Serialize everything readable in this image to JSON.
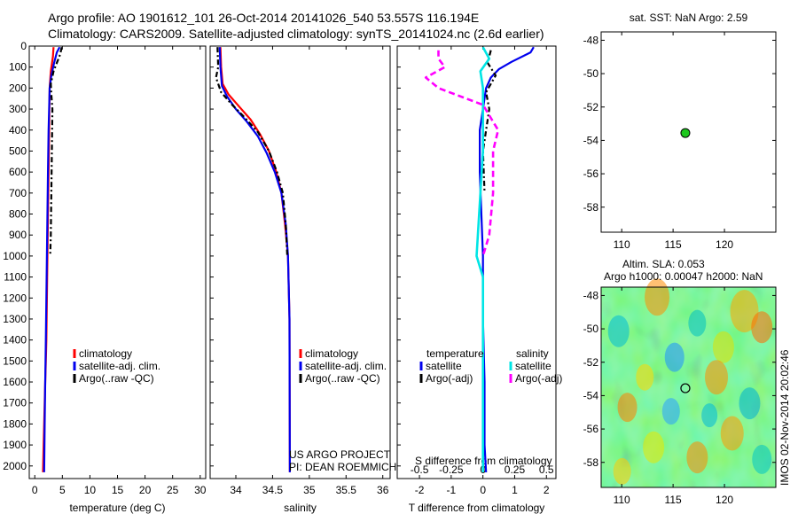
{
  "header": {
    "line1": "Argo profile: AO 1901612_101 26-Oct-2014 20141026_540 53.557S 116.194E",
    "line2": "Climatology: CARS2009. Satellite-adjusted climatology: synTS_20141024.nc (2.6d earlier)"
  },
  "side_stamp": "IMOS 02-Nov-2014 20:02:46",
  "colors": {
    "clim": "#ff0000",
    "sat": "#0000ee",
    "argo": "#000000",
    "sat_s": "#00e5e5",
    "argo_s": "#ff00ff"
  },
  "chart_data": [
    {
      "id": "temperature",
      "type": "line",
      "xlabel": "temperature (deg C)",
      "ylabel": "",
      "xlim": [
        -1,
        31
      ],
      "ylim": [
        2060,
        0
      ],
      "xticks": [
        "0",
        "5",
        "10",
        "15",
        "20",
        "25",
        "30"
      ],
      "xtick_values": [
        0,
        5,
        10,
        15,
        20,
        25,
        30
      ],
      "yticks": [
        "0",
        "100",
        "200",
        "300",
        "400",
        "500",
        "600",
        "700",
        "800",
        "900",
        "1000",
        "1100",
        "1200",
        "1300",
        "1400",
        "1500",
        "1600",
        "1700",
        "1800",
        "1900",
        "2000"
      ],
      "ytick_values": [
        0,
        100,
        200,
        300,
        400,
        500,
        600,
        700,
        800,
        900,
        1000,
        1100,
        1200,
        1300,
        1400,
        1500,
        1600,
        1700,
        1800,
        1900,
        2000
      ],
      "legend": [
        "climatology",
        "satellite-adj. clim.",
        "Argo(..raw -QC)"
      ],
      "series": [
        {
          "name": "climatology",
          "x": [
            3.4,
            3.3,
            2.9,
            2.7,
            2.6,
            2.5,
            2.4,
            2.3,
            2.2,
            2.1,
            2.0,
            1.9,
            1.8,
            1.7,
            1.6,
            1.5
          ],
          "y": [
            5,
            50,
            120,
            200,
            400,
            600,
            800,
            1000,
            1200,
            1400,
            1500,
            1600,
            1700,
            1800,
            1900,
            2030
          ]
        },
        {
          "name": "satellite-adj. clim.",
          "x": [
            4.5,
            4.0,
            3.5,
            3.0,
            2.7,
            2.6,
            2.5,
            2.4,
            2.3,
            2.2,
            2.1,
            2.0,
            1.9,
            1.8,
            1.7
          ],
          "y": [
            5,
            30,
            80,
            140,
            200,
            300,
            400,
            600,
            800,
            1000,
            1200,
            1400,
            1600,
            1800,
            2030
          ]
        },
        {
          "name": "Argo(..raw -QC)",
          "x": [
            4.9,
            4.6,
            3.4,
            2.9,
            3.0,
            3.2,
            3.1,
            3.0,
            2.9,
            2.8
          ],
          "y": [
            5,
            40,
            120,
            180,
            230,
            300,
            500,
            700,
            900,
            1000
          ]
        }
      ]
    },
    {
      "id": "salinity",
      "type": "line",
      "xlabel": "salinity",
      "xlim": [
        33.65,
        36.1
      ],
      "ylim": [
        2060,
        0
      ],
      "xticks": [
        "34",
        "34.5",
        "35",
        "35.5",
        "36"
      ],
      "xtick_values": [
        34,
        34.5,
        35,
        35.5,
        36
      ],
      "legend": [
        "climatology",
        "satellite-adj. clim.",
        "Argo(..raw -QC)"
      ],
      "annotations": [
        "US ARGO PROJECT",
        "PI: DEAN ROEMMICH"
      ],
      "series": [
        {
          "name": "climatology",
          "x": [
            33.79,
            33.8,
            33.82,
            33.9,
            34.05,
            34.2,
            34.33,
            34.45,
            34.55,
            34.62,
            34.67,
            34.71,
            34.73,
            34.735
          ],
          "y": [
            5,
            100,
            180,
            230,
            290,
            350,
            420,
            500,
            600,
            700,
            850,
            1000,
            1300,
            2030
          ]
        },
        {
          "name": "satellite-adj. clim.",
          "x": [
            33.78,
            33.79,
            33.81,
            33.88,
            34.0,
            34.15,
            34.3,
            34.42,
            34.53,
            34.62,
            34.68,
            34.71,
            34.73,
            34.735
          ],
          "y": [
            5,
            100,
            190,
            240,
            300,
            360,
            430,
            510,
            600,
            700,
            850,
            1000,
            1300,
            2030
          ]
        },
        {
          "name": "Argo(..raw -QC)",
          "x": [
            33.75,
            33.76,
            33.73,
            33.8,
            33.95,
            34.12,
            34.3,
            34.45,
            34.56,
            34.64,
            34.68,
            34.7
          ],
          "y": [
            5,
            100,
            150,
            220,
            280,
            340,
            410,
            500,
            600,
            700,
            850,
            1000
          ]
        }
      ]
    },
    {
      "id": "differences",
      "type": "line",
      "xlabel": "T difference from climatology",
      "top_xlabel": "S difference from climatology",
      "xlim": [
        -2.7,
        2.3
      ],
      "ylim": [
        2060,
        0
      ],
      "xticks": [
        "-2",
        "-1",
        "0",
        "1",
        "2"
      ],
      "xtick_values": [
        -2,
        -1,
        0,
        1,
        2
      ],
      "top_xticks": [
        "-0.5",
        "-0.25",
        "0",
        "0.25",
        "0.5"
      ],
      "top_xtick_values": [
        -0.5,
        -0.25,
        0,
        0.25,
        0.5
      ],
      "legend_left_title": "temperature",
      "legend_right_title": "salinity",
      "legend_left": [
        "satellite",
        "Argo(-adj)"
      ],
      "legend_right": [
        "satellite",
        "Argo(-adj)"
      ],
      "series": [
        {
          "name": "temperature satellite",
          "x": [
            1.6,
            1.5,
            0.9,
            0.5,
            0.25,
            0.1,
            0.0,
            -0.1,
            -0.1,
            -0.05,
            0.0,
            0.0,
            0.05,
            0.05,
            0.1
          ],
          "y": [
            5,
            30,
            75,
            110,
            150,
            200,
            300,
            400,
            600,
            800,
            1000,
            1300,
            1600,
            1900,
            2030
          ]
        },
        {
          "name": "temperature Argo(-adj)",
          "x": [
            0.25,
            0.15,
            0.4,
            0.1,
            0.2,
            0.0,
            0.05
          ],
          "y": [
            20,
            80,
            140,
            220,
            300,
            500,
            700
          ]
        },
        {
          "name": "salinity satellite",
          "x": [
            0.0,
            0.05,
            -0.02,
            0.0,
            0.0,
            -0.05,
            0.0,
            0.0,
            0.0
          ],
          "y": [
            5,
            60,
            120,
            200,
            500,
            1000,
            1100,
            1500,
            2030
          ]
        },
        {
          "name": "salinity Argo(-adj)",
          "x": [
            -0.35,
            -0.35,
            -0.3,
            -0.45,
            -0.35,
            0.0,
            0.12,
            0.08,
            0.08,
            0.05,
            0.0
          ],
          "y": [
            20,
            60,
            100,
            150,
            200,
            280,
            400,
            500,
            700,
            900,
            1000
          ]
        }
      ]
    },
    {
      "id": "sst-map",
      "type": "scatter",
      "title": "sat. SST: NaN Argo: 2.59",
      "xlim": [
        108,
        125
      ],
      "ylim": [
        -59.5,
        -47.5
      ],
      "xticks": [
        "110",
        "115",
        "120"
      ],
      "xtick_values": [
        110,
        115,
        120
      ],
      "yticks": [
        "-48",
        "-50",
        "-52",
        "-54",
        "-56",
        "-58"
      ],
      "ytick_values": [
        -48,
        -50,
        -52,
        -54,
        -56,
        -58
      ],
      "points": [
        {
          "x": 116.194,
          "y": -53.557
        }
      ]
    },
    {
      "id": "sla-map",
      "type": "heatmap",
      "title_lines": [
        "Altim. SLA: 0.053",
        "Argo h1000: 0.00047 h2000: NaN"
      ],
      "xlim": [
        108,
        125
      ],
      "ylim": [
        -59.5,
        -47.5
      ],
      "xticks": [
        "110",
        "115",
        "120"
      ],
      "xtick_values": [
        110,
        115,
        120
      ],
      "yticks": [
        "-48",
        "-50",
        "-52",
        "-54",
        "-56",
        "-58"
      ],
      "ytick_values": [
        -48,
        -50,
        -52,
        -54,
        -56,
        -58
      ],
      "points": [
        {
          "x": 116.194,
          "y": -53.557
        }
      ]
    }
  ]
}
